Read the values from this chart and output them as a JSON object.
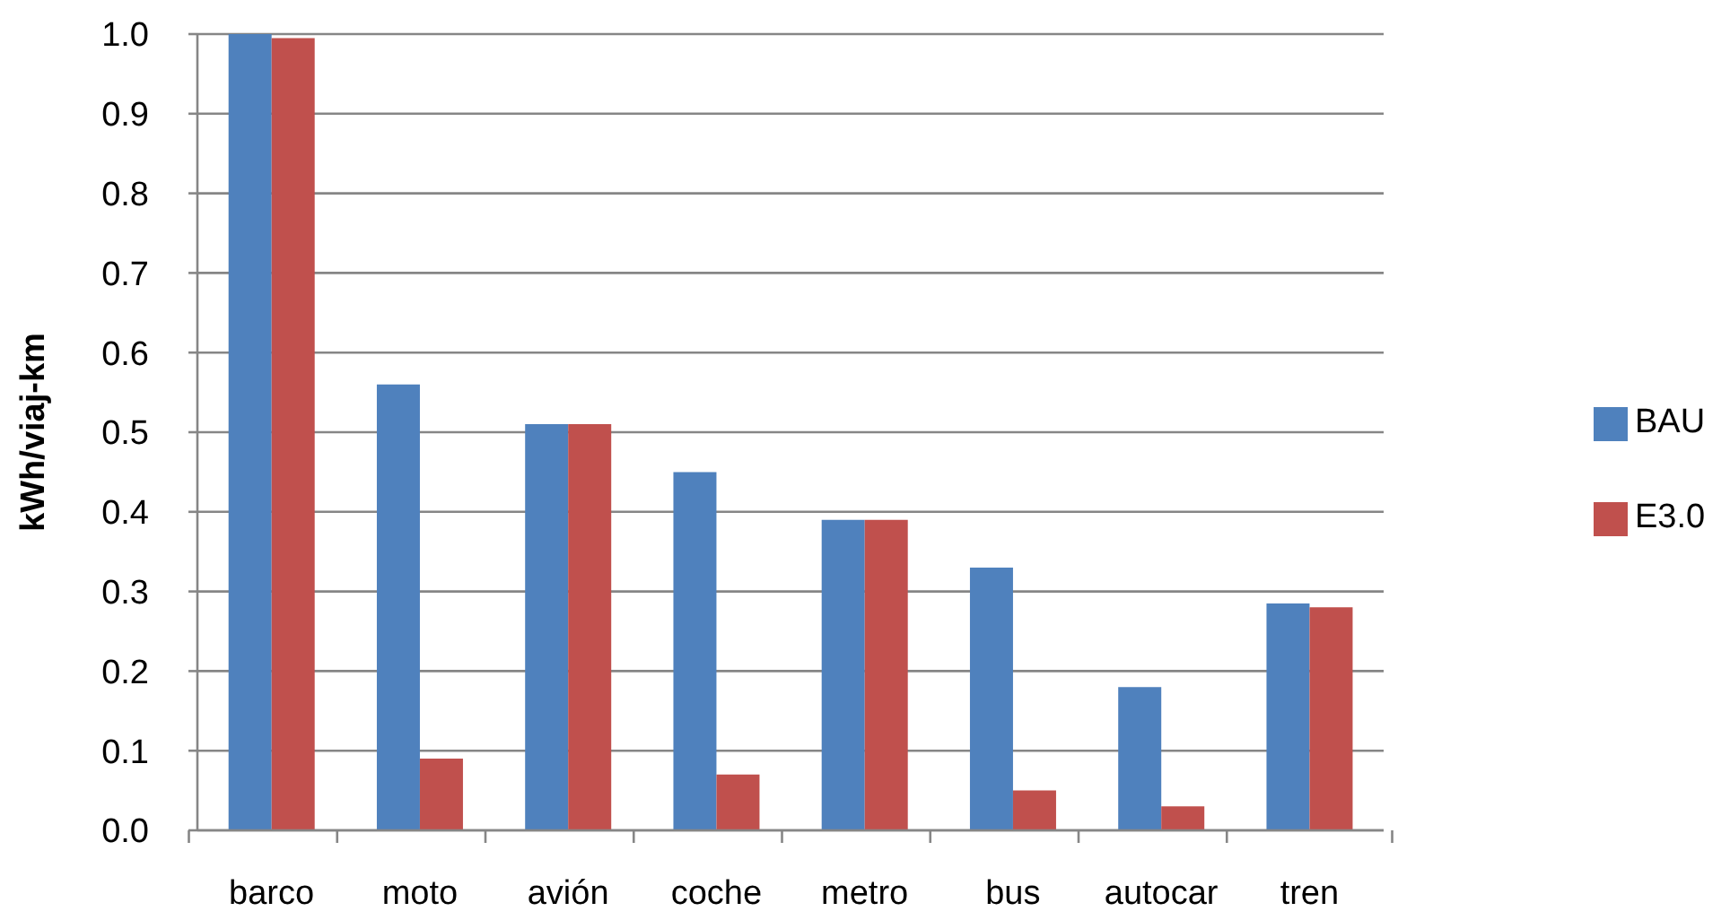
{
  "chart_data": {
    "type": "bar",
    "ylabel": "kWh/viaj-km",
    "categories": [
      "barco",
      "moto",
      "avión",
      "coche",
      "metro",
      "bus",
      "autocar",
      "tren"
    ],
    "series": [
      {
        "name": "BAU",
        "color": "#4f81bd",
        "values": [
          1.0,
          0.56,
          0.51,
          0.45,
          0.39,
          0.33,
          0.18,
          0.285
        ]
      },
      {
        "name": "E3.0",
        "color": "#c0504d",
        "values": [
          0.995,
          0.09,
          0.51,
          0.07,
          0.39,
          0.05,
          0.03,
          0.28
        ]
      }
    ],
    "ylim": [
      0,
      1.0
    ],
    "yticks": [
      {
        "value": 0,
        "label": "0.0"
      },
      0.1,
      0.2,
      0.3,
      0.4,
      0.5,
      0.6,
      0.7,
      0.8,
      0.9,
      {
        "value": 1.0,
        "label": "1.0"
      }
    ],
    "grid": "y",
    "legend": "right"
  }
}
